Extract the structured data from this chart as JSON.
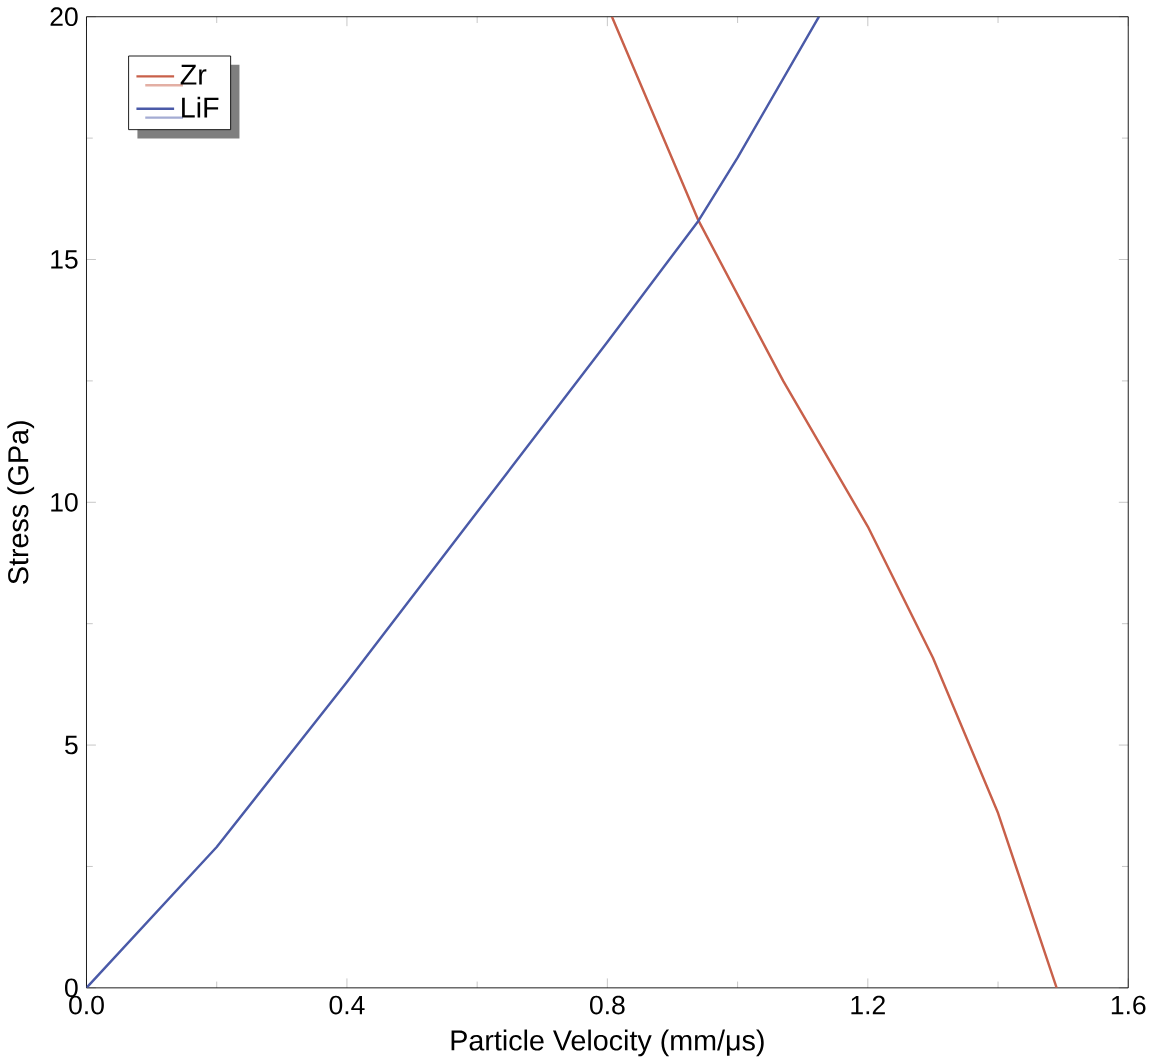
{
  "chart_data": {
    "type": "line",
    "xlabel": "Particle Velocity (mm/μs)",
    "ylabel": "Stress (GPa)",
    "xlim": [
      0,
      1.6
    ],
    "ylim": [
      0,
      20
    ],
    "xticks": [
      {
        "value": 0,
        "label": "0.0"
      },
      0.4,
      0.8,
      1.2,
      1.6
    ],
    "yticks": [
      0,
      5,
      10,
      15,
      20
    ],
    "legend": "top left",
    "grid": false,
    "marker": "none",
    "line_style": "solid",
    "series": [
      {
        "name": "Zr",
        "color": "#c8604a",
        "x": [
          0.807,
          0.94,
          1.07,
          1.2,
          1.3,
          1.4,
          1.49
        ],
        "values": [
          20,
          15.8,
          12.5,
          9.5,
          6.8,
          3.6,
          0
        ]
      },
      {
        "name": "LiF",
        "color": "#4a5aa8",
        "x": [
          0,
          0.2,
          0.4,
          0.6,
          0.8,
          0.94,
          1.0,
          1.125
        ],
        "values": [
          0,
          2.9,
          6.3,
          9.8,
          13.3,
          15.8,
          17.1,
          20
        ]
      }
    ]
  }
}
